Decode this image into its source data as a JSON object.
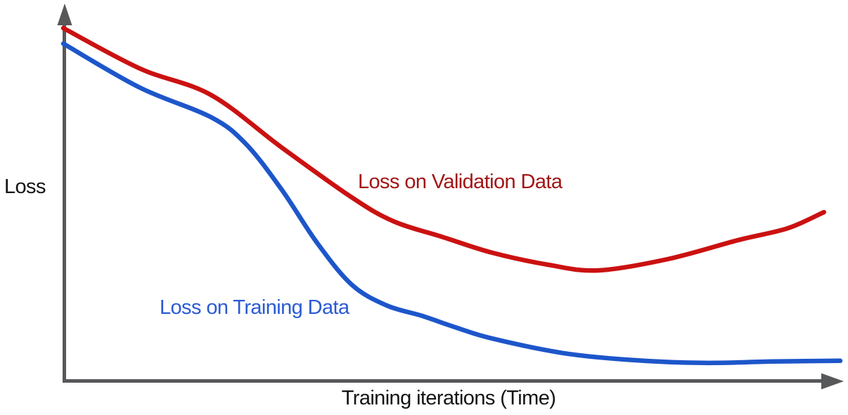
{
  "chart_data": {
    "type": "line",
    "title": "",
    "xlabel": "Training iterations (Time)",
    "ylabel": "Loss",
    "axes": {
      "style": "schematic-arrows",
      "ticks": "none",
      "grid": false,
      "axis_color": "#57585A",
      "text_color": "#141414",
      "x_range": [
        0,
        1
      ],
      "y_range": [
        0,
        1
      ]
    },
    "legend": {
      "position": "inline-labels-on-plot"
    },
    "series": [
      {
        "name": "Loss on Validation Data",
        "color": "#CB1111",
        "label_color": "#A21515",
        "shape": "decreases then rises after minimum (overfitting)",
        "points": [
          [
            0.0,
            1.0
          ],
          [
            0.099,
            0.885
          ],
          [
            0.19,
            0.811
          ],
          [
            0.281,
            0.662
          ],
          [
            0.371,
            0.521
          ],
          [
            0.425,
            0.453
          ],
          [
            0.489,
            0.408
          ],
          [
            0.552,
            0.364
          ],
          [
            0.624,
            0.33
          ],
          [
            0.688,
            0.314
          ],
          [
            0.778,
            0.346
          ],
          [
            0.869,
            0.4
          ],
          [
            0.932,
            0.433
          ],
          [
            0.979,
            0.479
          ]
        ]
      },
      {
        "name": "Loss on Training Data",
        "color": "#1D56CA",
        "label_color": "#2A5BD3",
        "shape": "monotonically decreases and flattens",
        "points": [
          [
            0.0,
            0.956
          ],
          [
            0.099,
            0.831
          ],
          [
            0.19,
            0.748
          ],
          [
            0.235,
            0.672
          ],
          [
            0.281,
            0.543
          ],
          [
            0.326,
            0.394
          ],
          [
            0.371,
            0.274
          ],
          [
            0.416,
            0.215
          ],
          [
            0.462,
            0.185
          ],
          [
            0.507,
            0.151
          ],
          [
            0.552,
            0.121
          ],
          [
            0.643,
            0.08
          ],
          [
            0.733,
            0.06
          ],
          [
            0.824,
            0.052
          ],
          [
            0.914,
            0.056
          ],
          [
            1.0,
            0.058
          ]
        ]
      }
    ]
  }
}
